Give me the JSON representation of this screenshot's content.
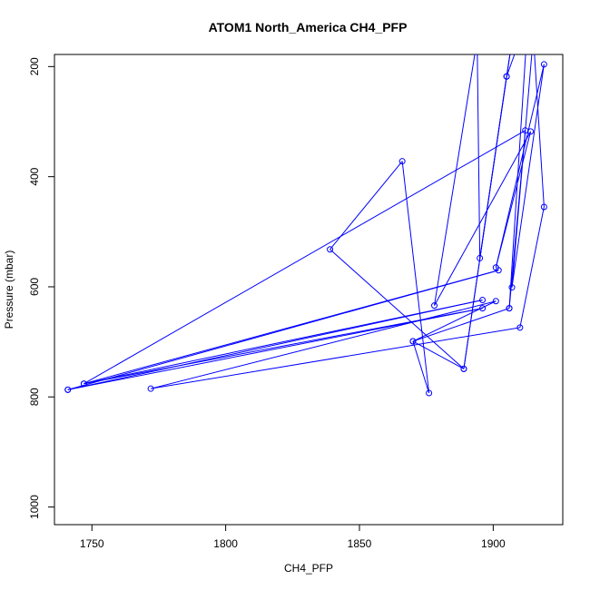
{
  "chart_data": {
    "type": "line",
    "title": "ATOM1 North_America CH4_PFP",
    "xlabel": "CH4_PFP",
    "ylabel": "Pressure (mbar)",
    "xlim": [
      1736,
      1926
    ],
    "ylim": [
      1032,
      178
    ],
    "y_reversed": true,
    "x_ticks": [
      1750,
      1800,
      1850,
      1900
    ],
    "y_ticks": [
      200,
      400,
      600,
      800,
      1000
    ],
    "grid": false,
    "series_color": "#0000ff",
    "series": [
      {
        "points": [
          {
            "x": 1741,
            "y": 787
          },
          {
            "x": 1896,
            "y": 624
          },
          {
            "x": 1747,
            "y": 776
          },
          {
            "x": 1902,
            "y": 570
          },
          {
            "x": 1741,
            "y": 787
          },
          {
            "x": 1896,
            "y": 639
          },
          {
            "x": 1747,
            "y": 776
          },
          {
            "x": 1912,
            "y": 316
          },
          {
            "x": 1906,
            "y": 639
          },
          {
            "x": 1870,
            "y": 699
          },
          {
            "x": 1901,
            "y": 626
          },
          {
            "x": 1772,
            "y": 785
          },
          {
            "x": 1910,
            "y": 674
          },
          {
            "x": 1919,
            "y": 455
          },
          {
            "x": 1915,
            "y": 145
          },
          {
            "x": 1907,
            "y": 601
          },
          {
            "x": 1919,
            "y": 196
          },
          {
            "x": 1901,
            "y": 565
          },
          {
            "x": 1914,
            "y": 318
          },
          {
            "x": 1878,
            "y": 634
          },
          {
            "x": 1894,
            "y": 151
          },
          {
            "x": 1895,
            "y": 548
          },
          {
            "x": 1908,
            "y": 121
          },
          {
            "x": 1905,
            "y": 218
          },
          {
            "x": 1889,
            "y": 749
          },
          {
            "x": 1839,
            "y": 532
          },
          {
            "x": 1866,
            "y": 372
          },
          {
            "x": 1876,
            "y": 793
          },
          {
            "x": 1870,
            "y": 699
          },
          {
            "x": 1889,
            "y": 749
          },
          {
            "x": 1905,
            "y": 218
          },
          {
            "x": 1913,
            "y": 110
          },
          {
            "x": 1906,
            "y": 639
          }
        ]
      }
    ]
  }
}
